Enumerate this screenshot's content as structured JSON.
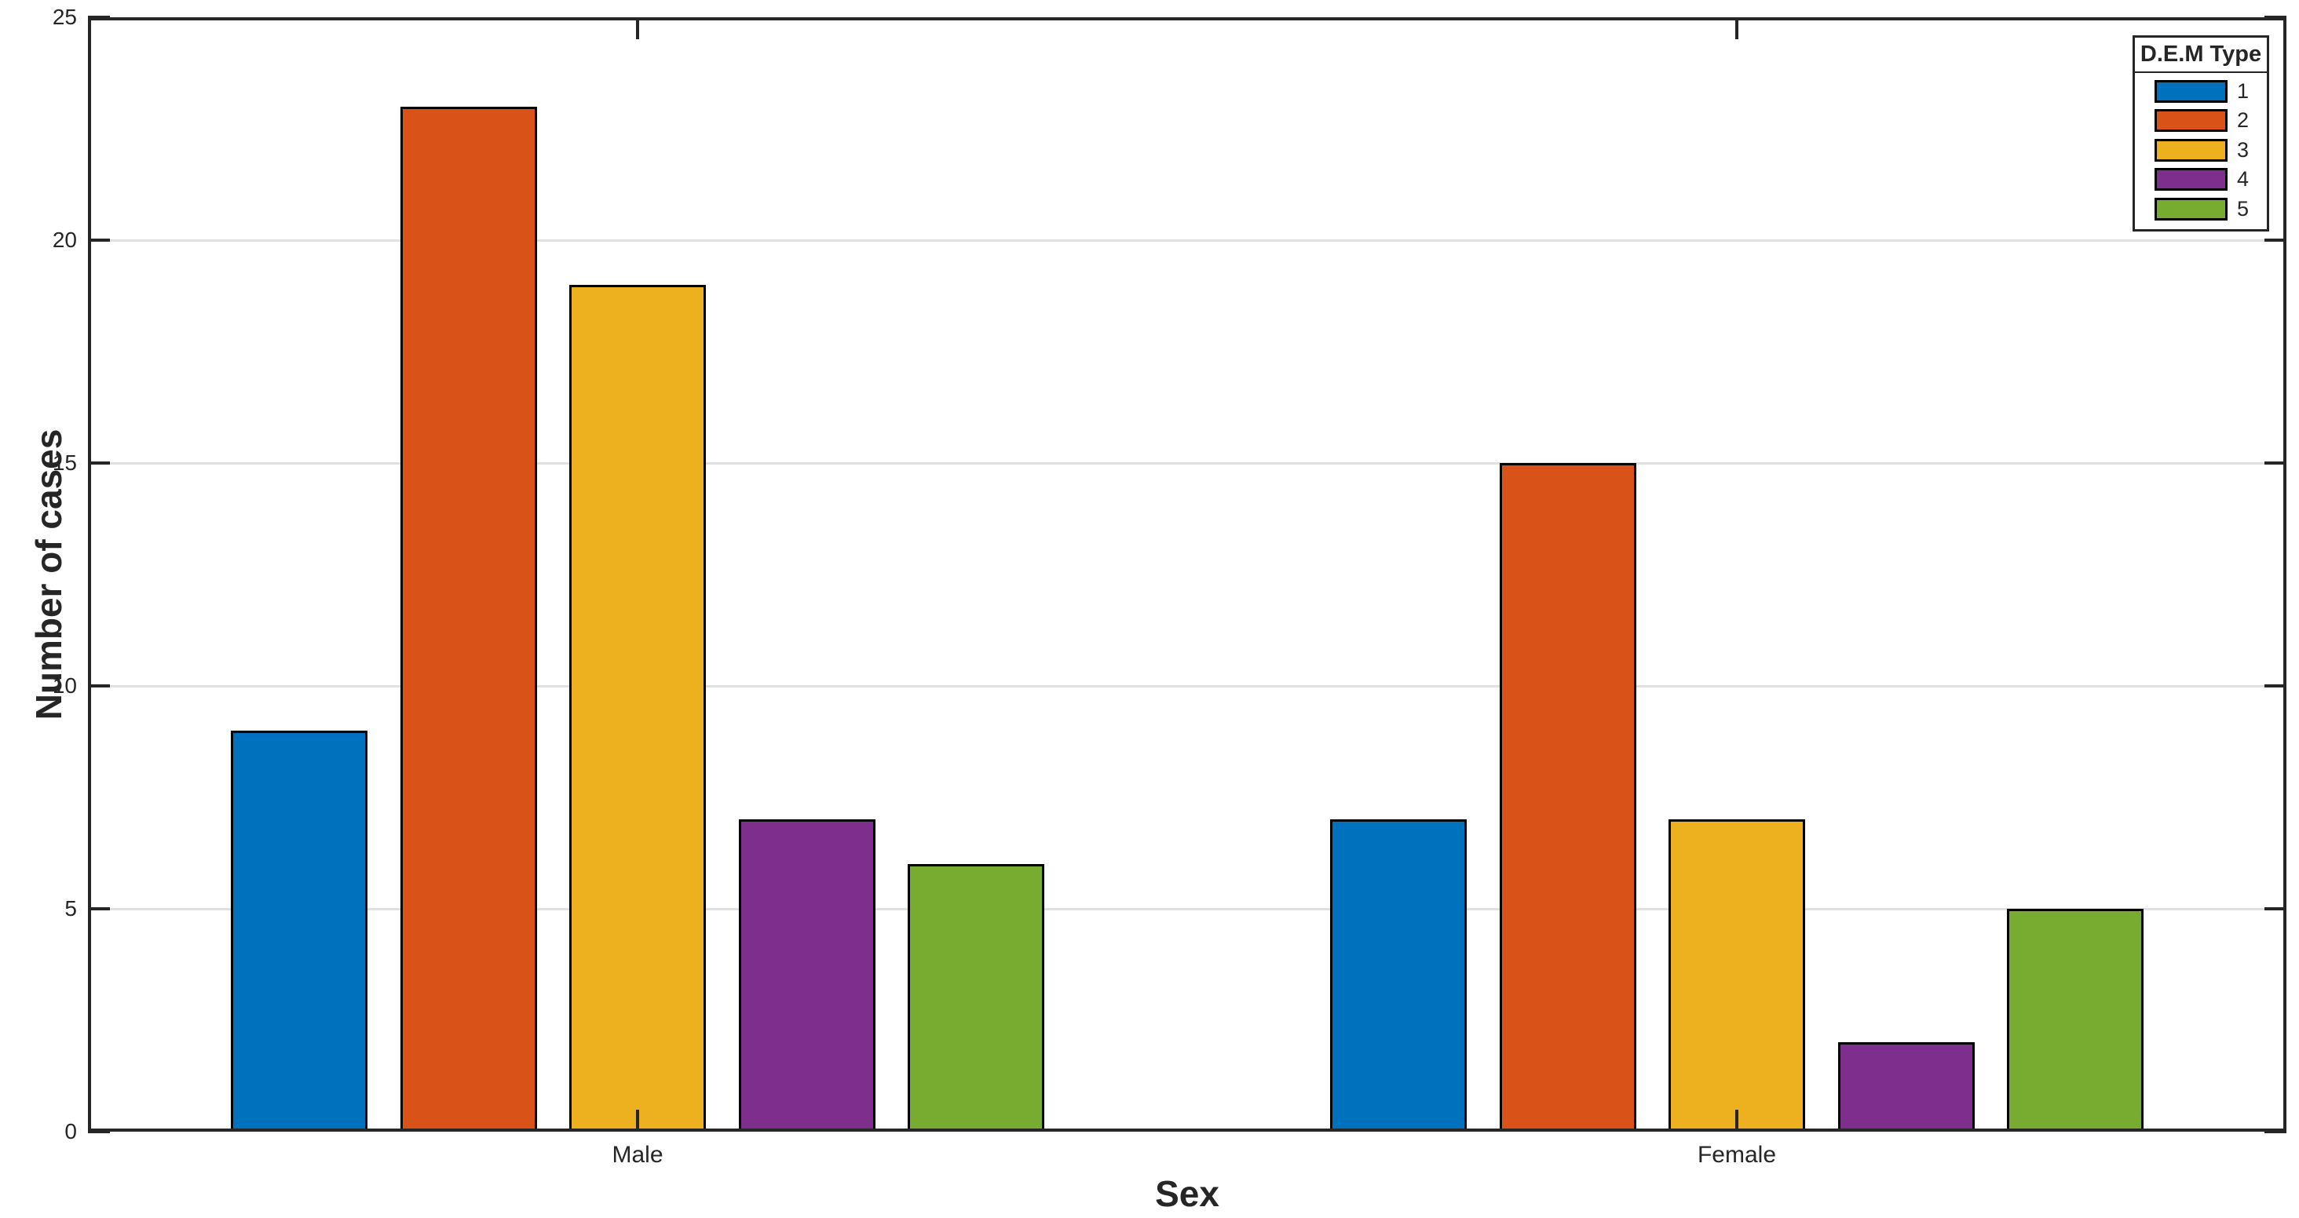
{
  "figure": {
    "background": "#FFFFFF",
    "axis_color": "#262626",
    "grid_color": "#E0E0E0",
    "bar_edge_color": "#000000",
    "text_color": "#262626"
  },
  "chart_data": {
    "type": "bar",
    "title": "",
    "xlabel": "Sex",
    "ylabel": "Number of cases",
    "categories": [
      "Male",
      "Female"
    ],
    "series": [
      {
        "name": "1",
        "color": "#0072BD",
        "values": [
          9,
          7
        ]
      },
      {
        "name": "2",
        "color": "#D95319",
        "values": [
          23,
          15
        ]
      },
      {
        "name": "3",
        "color": "#EDB120",
        "values": [
          19,
          7
        ]
      },
      {
        "name": "4",
        "color": "#7E2F8E",
        "values": [
          7,
          2
        ]
      },
      {
        "name": "5",
        "color": "#77AC30",
        "values": [
          6,
          5
        ]
      }
    ],
    "ylim": [
      0,
      25
    ],
    "yticks": [
      0,
      5,
      10,
      15,
      20,
      25
    ],
    "grid": "horizontal-only",
    "legend_title": "D.E.M Type",
    "legend_position": "top-right"
  }
}
